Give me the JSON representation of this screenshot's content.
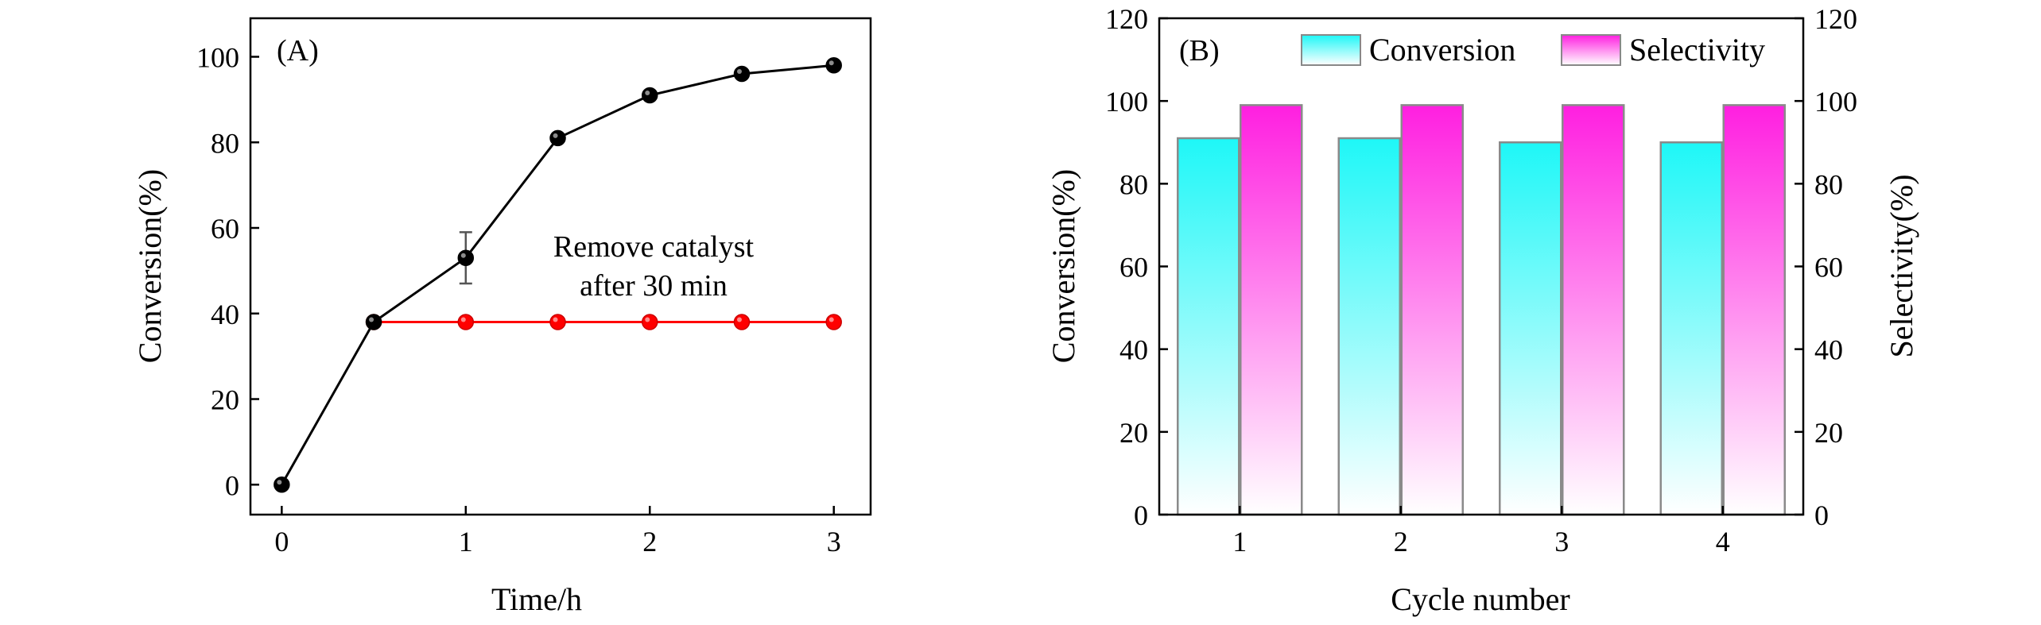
{
  "chart_data": [
    {
      "type": "line",
      "panel_label": "(A)",
      "xlabel": "Time/h",
      "ylabel": "Conversion(%)",
      "xlim": [
        -0.17,
        3.2
      ],
      "ylim": [
        -7,
        109
      ],
      "xticks": [
        0,
        1,
        2,
        3
      ],
      "xtick_labels": [
        "0",
        "1",
        "2",
        "3"
      ],
      "yticks": [
        0,
        20,
        40,
        60,
        80,
        100
      ],
      "ytick_labels": [
        "0",
        "20",
        "40",
        "60",
        "80",
        "100"
      ],
      "annotation": [
        "Remove catalyst",
        "after 30 min"
      ],
      "grid": false,
      "series": [
        {
          "color": "#000000",
          "x": [
            0,
            0.5,
            1,
            1.5,
            2,
            2.5,
            3
          ],
          "y": [
            0,
            38,
            53,
            81,
            91,
            96,
            98
          ],
          "error": [
            0,
            0,
            6,
            0,
            0,
            0,
            0
          ]
        },
        {
          "color": "#ff0000",
          "x": [
            0.5,
            1,
            1.5,
            2,
            2.5,
            3
          ],
          "y": [
            38,
            38,
            38,
            38,
            38,
            38
          ],
          "error": [
            0,
            0,
            0,
            0,
            0,
            0
          ]
        }
      ]
    },
    {
      "type": "bar",
      "panel_label": "(B)",
      "xlabel": "Cycle number",
      "ylabel": "Conversion(%)",
      "ylabel_right": "Selectivity(%)",
      "categories": [
        "1",
        "2",
        "3",
        "4"
      ],
      "ylim": [
        0,
        120
      ],
      "yticks": [
        0,
        20,
        40,
        60,
        80,
        100,
        120
      ],
      "ytick_labels": [
        "0",
        "20",
        "40",
        "60",
        "80",
        "100",
        "120"
      ],
      "legend_position": "top-right",
      "grid": false,
      "series": [
        {
          "name": "Conversion",
          "color": "#1ef7f7",
          "values": [
            91,
            91,
            90,
            90
          ]
        },
        {
          "name": "Selectivity",
          "color": "#ff1fe0",
          "values": [
            99,
            99,
            99,
            99
          ]
        }
      ]
    }
  ]
}
